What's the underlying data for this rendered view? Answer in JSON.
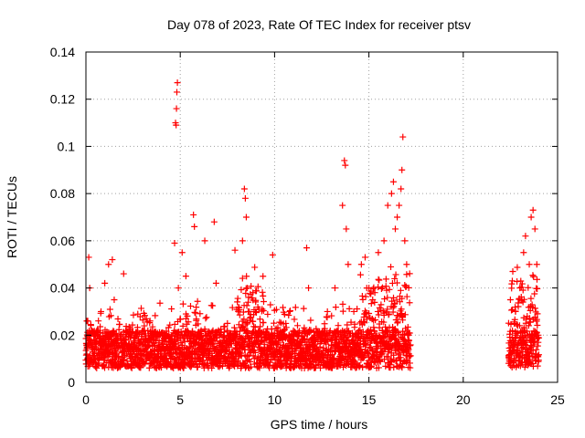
{
  "chart_data": {
    "type": "scatter",
    "title": "Day 078 of 2023, Rate Of TEC Index for receiver ptsv",
    "xlabel": "GPS time / hours",
    "ylabel": "ROTI / TECUs",
    "xlim": [
      0,
      25
    ],
    "ylim": [
      0,
      0.14
    ],
    "x_ticks": [
      "0",
      "5",
      "10",
      "15",
      "20",
      "25"
    ],
    "y_ticks": [
      "0",
      "0.02",
      "0.04",
      "0.06",
      "0.08",
      "0.1",
      "0.12",
      "0.14"
    ],
    "grid": true,
    "marker": "plus",
    "color": "#ff0000",
    "series": [
      {
        "marker": "plus",
        "color": "#ff0000",
        "x": [
          0.05,
          0.1,
          0.15,
          0.2,
          0.3,
          0.5,
          0.8,
          1.0,
          1.2,
          1.4,
          1.5,
          1.6,
          1.7,
          2.0,
          2.3,
          2.7,
          3.0,
          3.4,
          3.8,
          4.2,
          4.5,
          4.7,
          4.75,
          4.8,
          4.82,
          4.85,
          4.78,
          4.9,
          5.1,
          5.2,
          5.3,
          5.7,
          5.75,
          6.0,
          6.3,
          6.8,
          6.9,
          7.2,
          7.5,
          7.9,
          8.3,
          8.4,
          8.45,
          8.5,
          8.55,
          8.6,
          8.8,
          9.2,
          9.5,
          9.9,
          10.0,
          10.3,
          10.8,
          11.2,
          11.7,
          11.8,
          12.3,
          12.8,
          13.2,
          13.6,
          13.7,
          13.75,
          13.8,
          13.9,
          14.2,
          14.6,
          14.8,
          15.0,
          15.2,
          15.5,
          15.8,
          16.0,
          16.2,
          16.3,
          16.4,
          16.5,
          16.6,
          16.7,
          16.75,
          16.8,
          16.9,
          17.0,
          17.1,
          22.5,
          22.6,
          22.8,
          23.0,
          23.2,
          23.3,
          23.5,
          23.6,
          23.7,
          23.8,
          23.9
        ],
        "y": [
          0.012,
          0.026,
          0.053,
          0.04,
          0.015,
          0.01,
          0.03,
          0.042,
          0.05,
          0.052,
          0.035,
          0.02,
          0.018,
          0.046,
          0.015,
          0.012,
          0.01,
          0.026,
          0.012,
          0.02,
          0.01,
          0.059,
          0.11,
          0.116,
          0.123,
          0.127,
          0.109,
          0.04,
          0.055,
          0.02,
          0.045,
          0.071,
          0.066,
          0.02,
          0.06,
          0.068,
          0.042,
          0.015,
          0.025,
          0.056,
          0.06,
          0.082,
          0.078,
          0.07,
          0.04,
          0.03,
          0.02,
          0.015,
          0.012,
          0.054,
          0.02,
          0.015,
          0.03,
          0.02,
          0.057,
          0.04,
          0.02,
          0.03,
          0.04,
          0.075,
          0.094,
          0.092,
          0.065,
          0.05,
          0.03,
          0.05,
          0.053,
          0.04,
          0.035,
          0.055,
          0.06,
          0.075,
          0.08,
          0.085,
          0.065,
          0.07,
          0.075,
          0.082,
          0.09,
          0.104,
          0.06,
          0.05,
          0.02,
          0.035,
          0.043,
          0.02,
          0.04,
          0.055,
          0.062,
          0.05,
          0.07,
          0.073,
          0.065,
          0.05
        ]
      }
    ]
  }
}
